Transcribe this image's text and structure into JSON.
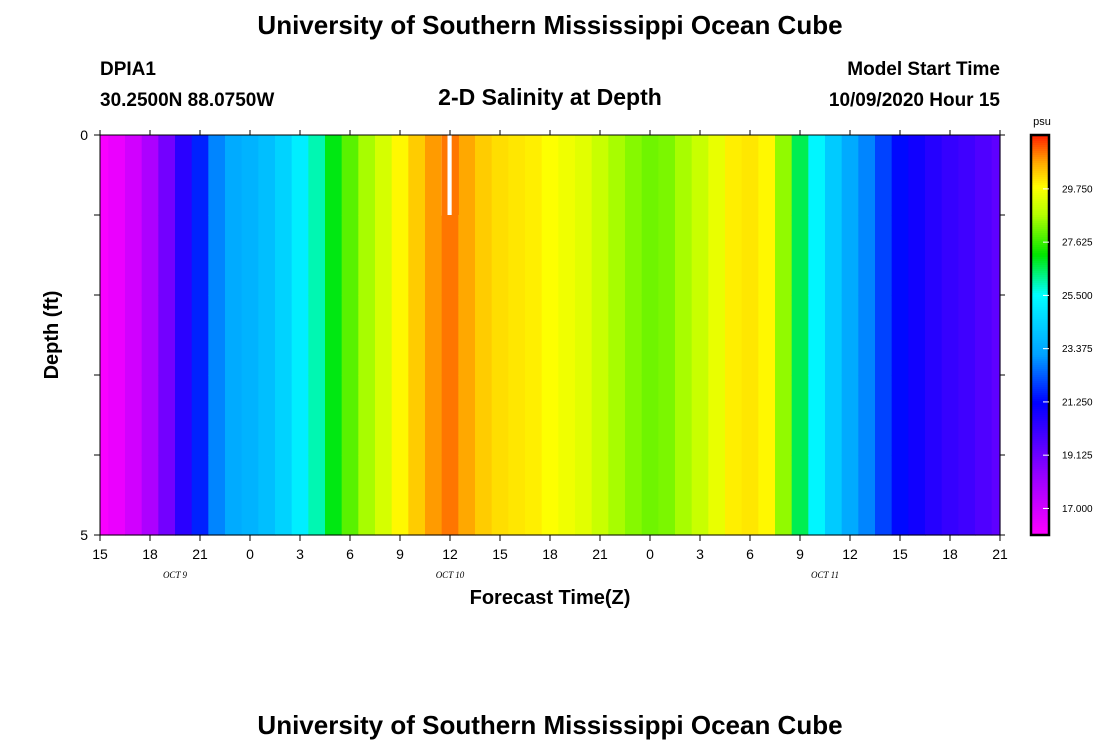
{
  "header": {
    "title": "University of Southern Mississippi Ocean Cube",
    "station": "DPIA1",
    "location": "30.2500N 88.0750W",
    "subtitle": "2-D Salinity at Depth",
    "model_label": "Model Start Time",
    "model_time": "10/09/2020 Hour 15"
  },
  "footer": {
    "title": "University of Southern Mississippi Ocean Cube"
  },
  "chart_data": {
    "type": "heatmap",
    "title": "2-D Salinity at Depth",
    "xlabel": "Forecast Time(Z)",
    "ylabel": "Depth (ft)",
    "x_unit": "forecast hour (10/09/2020 15Z to 10/11/2020 21Z)",
    "x_range": [
      0,
      54
    ],
    "x_ticks": [
      "15",
      "18",
      "21",
      "0",
      "3",
      "6",
      "9",
      "12",
      "15",
      "18",
      "21",
      "0",
      "3",
      "6",
      "9",
      "12",
      "15",
      "18",
      "21"
    ],
    "date_labels": [
      {
        "text": "OCT 9",
        "hour": 4.5
      },
      {
        "text": "OCT 10",
        "hour": 21
      },
      {
        "text": "OCT 11",
        "hour": 43.5
      }
    ],
    "y_range": [
      0,
      5
    ],
    "y_ticks": [
      "0",
      "5"
    ],
    "depth_rows": [
      0.5,
      1.5,
      2.5,
      3.5,
      4.5
    ],
    "hours": [
      0,
      1,
      2,
      3,
      4,
      5,
      6,
      7,
      8,
      9,
      10,
      11,
      12,
      13,
      14,
      15,
      16,
      17,
      18,
      19,
      20,
      21,
      22,
      23,
      24,
      25,
      26,
      27,
      28,
      29,
      30,
      31,
      32,
      33,
      34,
      35,
      36,
      37,
      38,
      39,
      40,
      41,
      42,
      43,
      44,
      45,
      46,
      47,
      48,
      49,
      50,
      51,
      52,
      53,
      54
    ],
    "salinity_psu": [
      16.1,
      16.4,
      17.0,
      17.8,
      19.0,
      20.4,
      21.6,
      22.8,
      23.4,
      23.6,
      23.9,
      24.4,
      25.1,
      26.0,
      27.0,
      27.9,
      28.6,
      29.2,
      29.9,
      30.4,
      30.9,
      31.2,
      30.8,
      30.4,
      30.2,
      30.1,
      30.0,
      29.8,
      29.6,
      29.4,
      29.0,
      28.6,
      28.3,
      28.1,
      28.2,
      28.6,
      29.0,
      29.5,
      30.0,
      30.1,
      29.9,
      28.4,
      26.6,
      25.3,
      24.2,
      23.4,
      22.8,
      22.0,
      21.3,
      20.9,
      20.5,
      20.2,
      20.0,
      19.7,
      19.4
    ],
    "masked_cell": {
      "hour": 21,
      "depth_row": 0
    },
    "colorbar": {
      "label": "psu",
      "min": 15.94,
      "max": 31.9,
      "ticks": [
        "17.000",
        "19.125",
        "21.250",
        "23.375",
        "25.500",
        "27.625",
        "29.750"
      ]
    }
  }
}
